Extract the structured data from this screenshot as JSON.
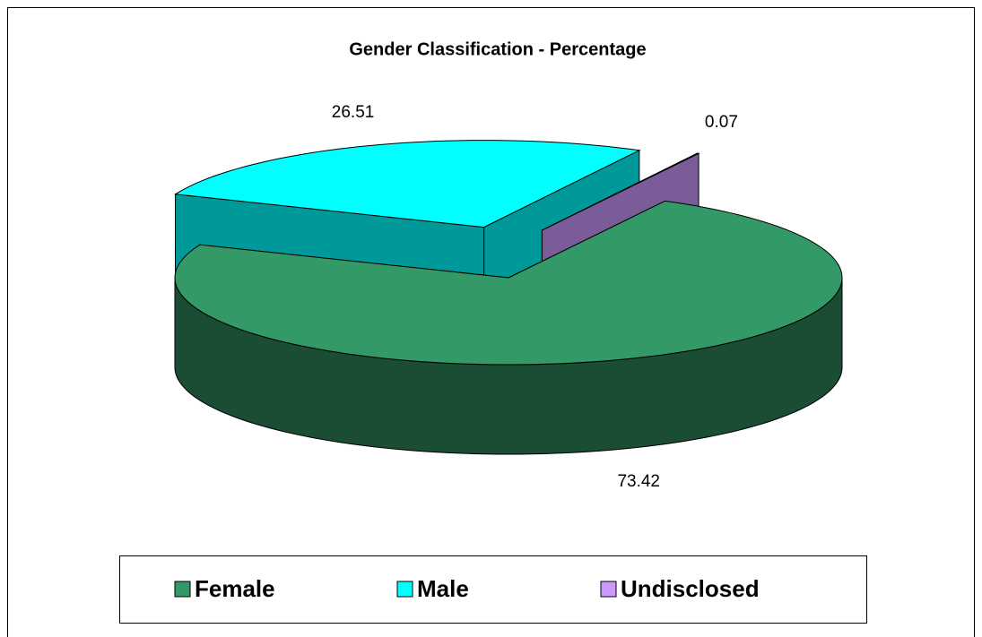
{
  "chart_data": {
    "type": "pie",
    "title": "Gender Classification - Percentage",
    "categories": [
      "Female",
      "Male",
      "Undisclosed"
    ],
    "values": [
      73.42,
      26.51,
      0.07
    ],
    "colors": [
      "#339966",
      "#00ffff",
      "#cc99ff"
    ],
    "legend": "bottom"
  }
}
